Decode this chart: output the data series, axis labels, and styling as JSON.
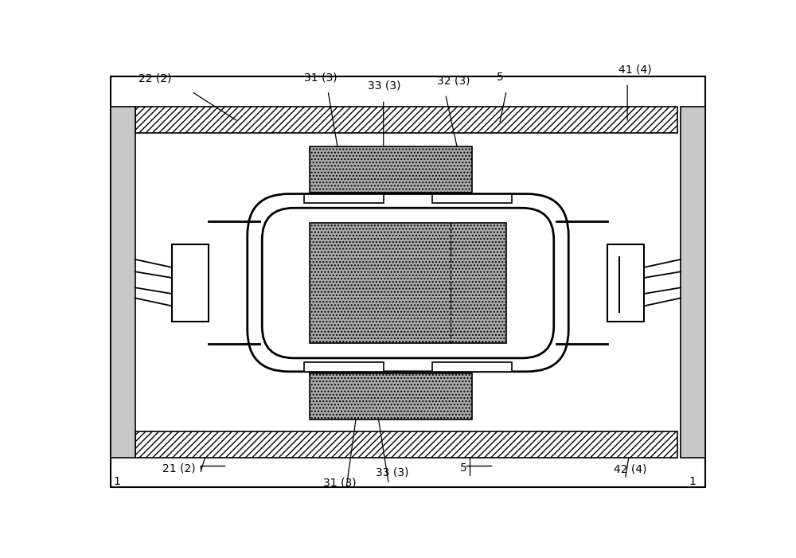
{
  "fig_width": 10.0,
  "fig_height": 7.01,
  "bg_color": "#ffffff",
  "black": "#000000",
  "lgray": "#c8c8c8",
  "stipple_gray": "#aaaaaa",
  "labels": {
    "1_left": "1",
    "1_right": "1",
    "21": "21 (2)",
    "22": "22 (2)",
    "31_top": "31 (3)",
    "31_bot": "31 (3)",
    "32": "32 (3)",
    "33_top": "33 (3)",
    "33_bot": "33 (3)",
    "41": "41 (4)",
    "42": "42 (4)",
    "5_top": "5",
    "5_bot": "5"
  },
  "font_size": 10
}
